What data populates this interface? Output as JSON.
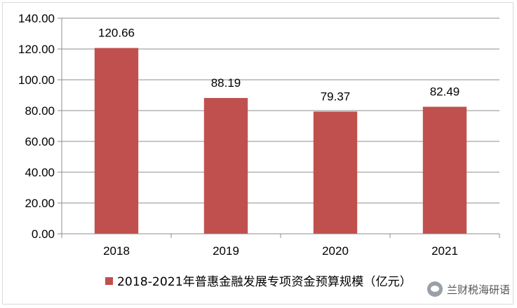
{
  "chart_data": {
    "type": "bar",
    "categories": [
      "2018",
      "2019",
      "2020",
      "2021"
    ],
    "series": [
      {
        "name": "2018-2021年普惠金融发展专项资金预算规模（亿元）",
        "values": [
          120.66,
          88.19,
          79.37,
          82.49
        ],
        "color": "#c0504d"
      }
    ],
    "data_labels": [
      "120.66",
      "88.19",
      "79.37",
      "82.49"
    ],
    "ylim": [
      0,
      140
    ],
    "yticks": [
      "0.00",
      "20.00",
      "40.00",
      "60.00",
      "80.00",
      "100.00",
      "120.00",
      "140.00"
    ],
    "grid": true,
    "legend_position": "bottom",
    "title": "",
    "xlabel": "",
    "ylabel": ""
  },
  "watermark": {
    "text": "兰财税海研语",
    "icon": "wechat-icon"
  },
  "colors": {
    "bar": "#c0504d",
    "grid": "#8c8c8c",
    "text": "#000000"
  }
}
